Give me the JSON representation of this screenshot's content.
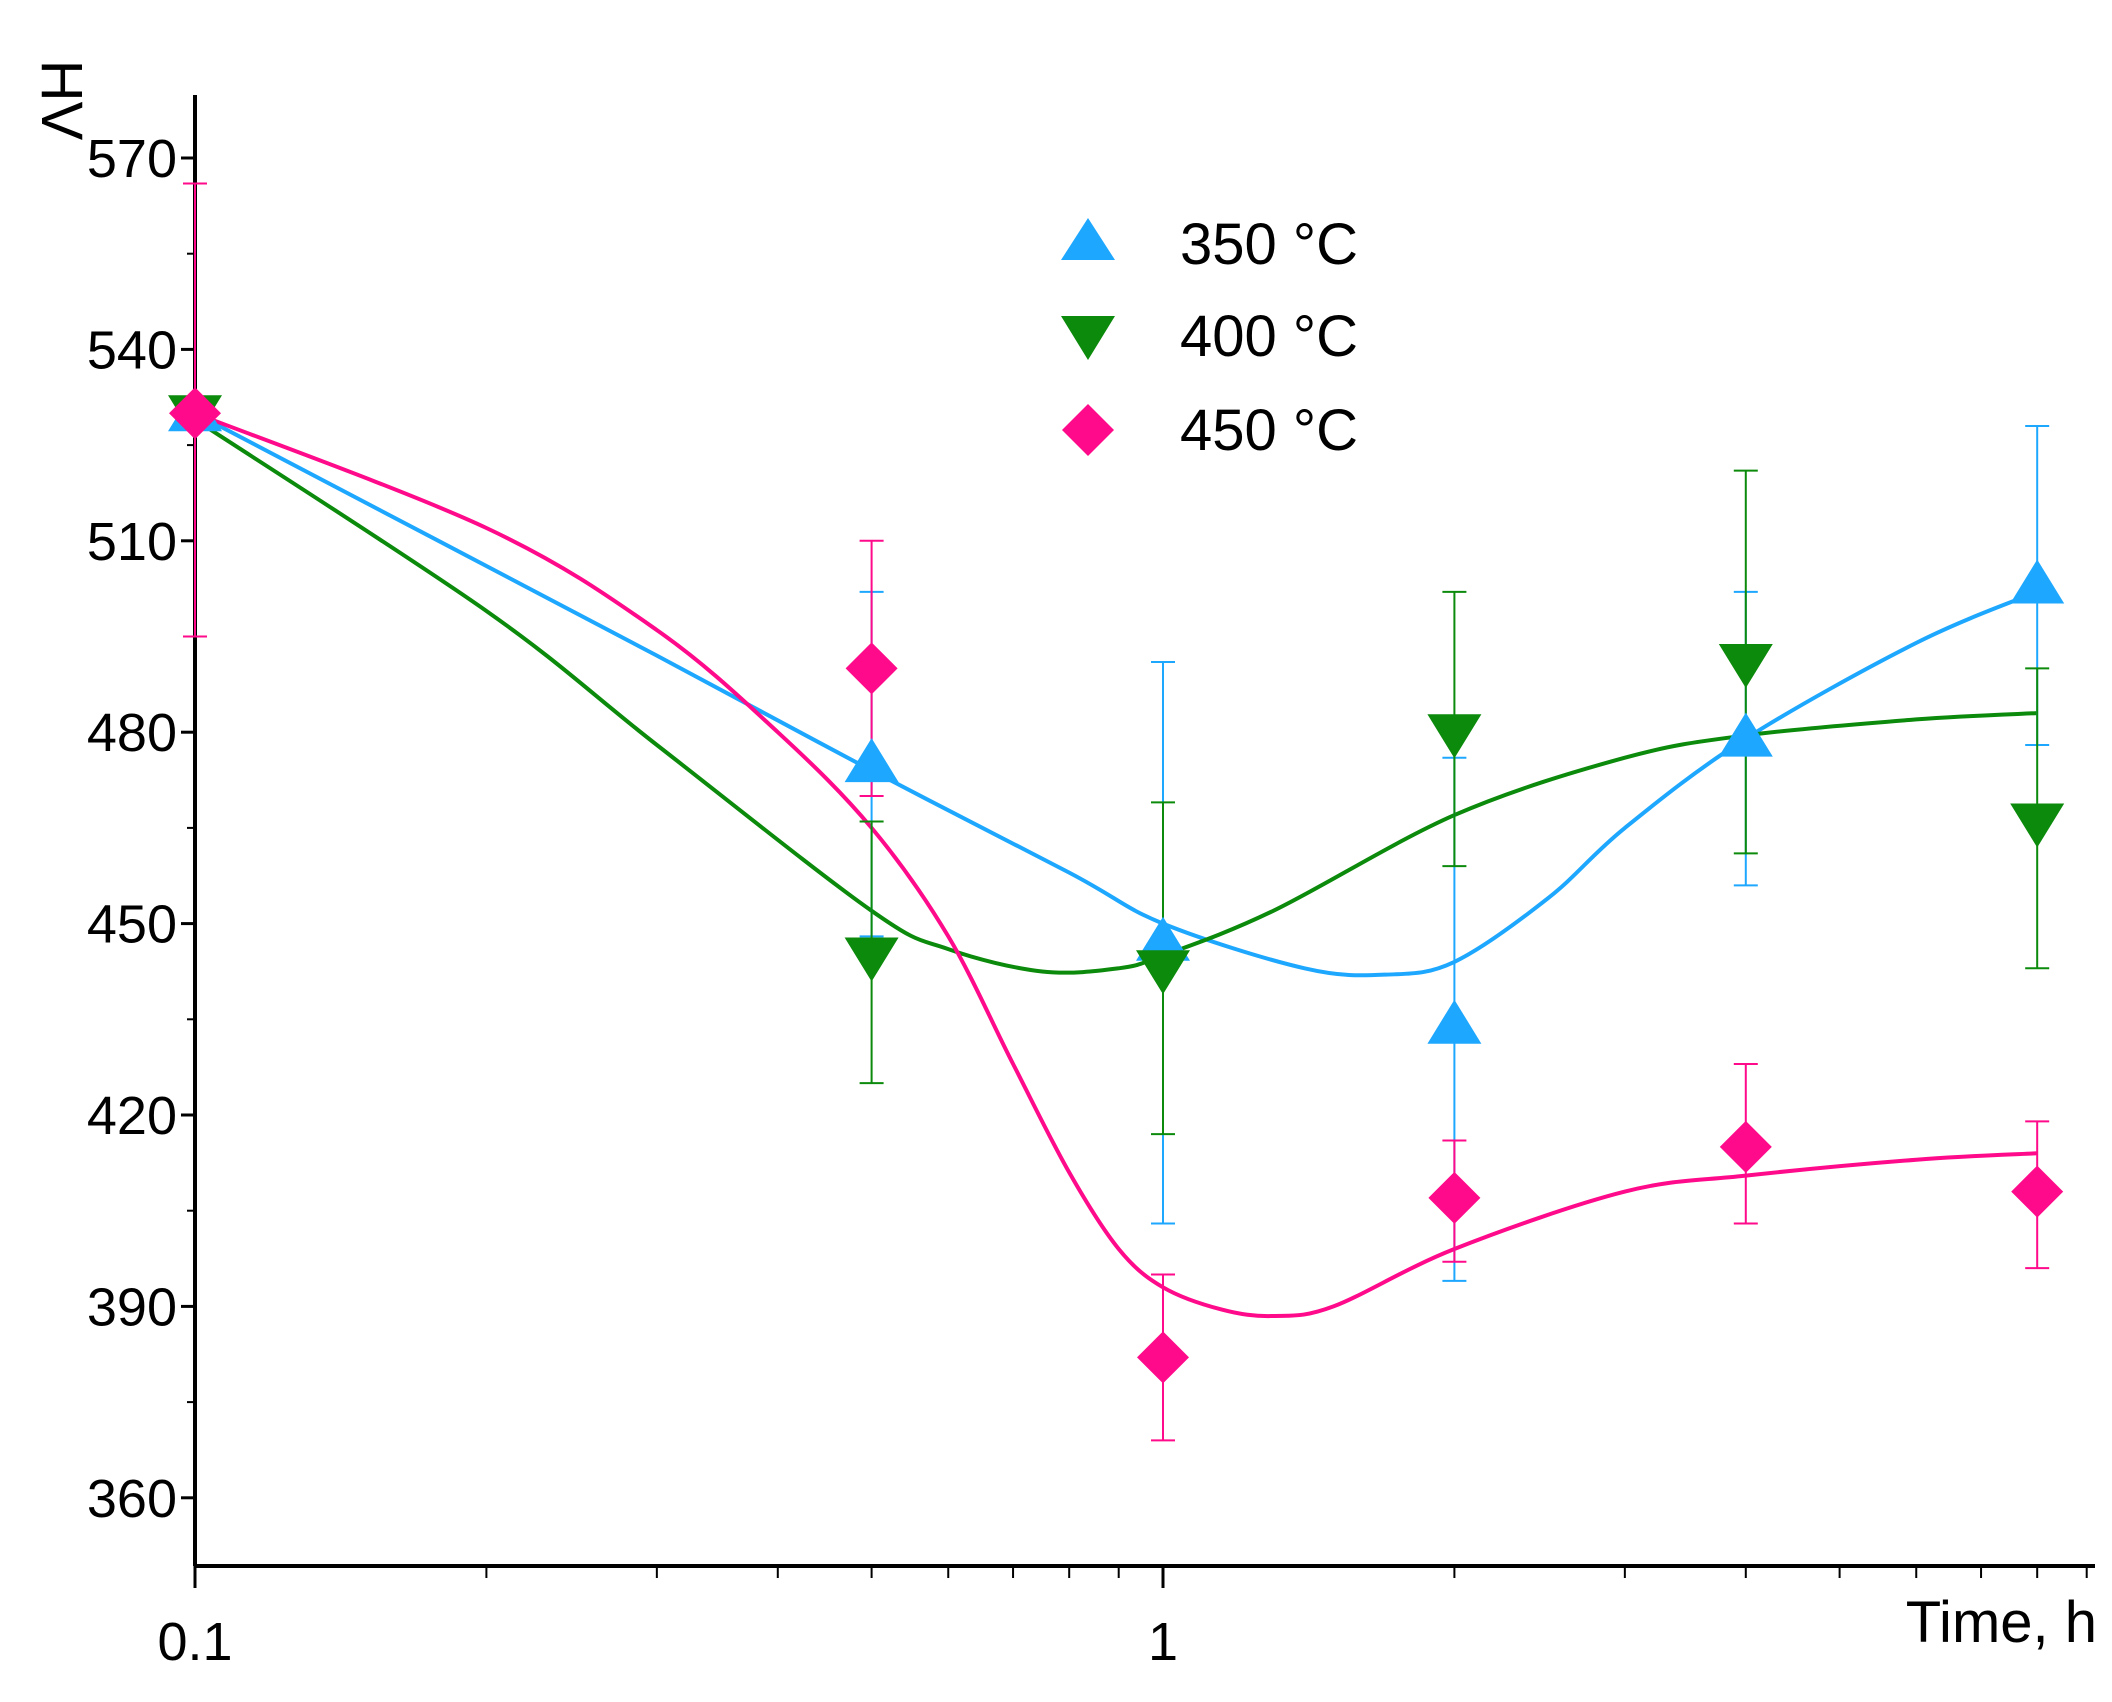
{
  "chart_data": {
    "type": "scatter",
    "title": "",
    "xlabel": "Time, h",
    "ylabel": "HV",
    "xscale": "log",
    "xlim": [
      0.1,
      9.3
    ],
    "ylim": [
      350,
      580
    ],
    "legend_position": "top-center",
    "grid": false,
    "x_tick_labels": [
      {
        "value": 0.1,
        "label": "0.1"
      },
      {
        "value": 1,
        "label": "1"
      }
    ],
    "y_ticks": [
      360,
      390,
      420,
      450,
      480,
      510,
      540,
      570
    ],
    "y_tick_labels": [
      "360",
      "390",
      "420",
      "450",
      "480",
      "510",
      "540",
      "570"
    ],
    "series": [
      {
        "name": "350 °C",
        "marker": "triangle-up",
        "color": "#1ea7ff",
        "points": [
          {
            "x": 0.1,
            "y": 530,
            "err_low": 530,
            "err_high": 530
          },
          {
            "x": 0.5,
            "y": 475,
            "err_low": 448,
            "err_high": 502
          },
          {
            "x": 1,
            "y": 447,
            "err_low": 403,
            "err_high": 491
          },
          {
            "x": 2,
            "y": 434,
            "err_low": 394,
            "err_high": 476
          },
          {
            "x": 4,
            "y": 479,
            "err_low": 456,
            "err_high": 502
          },
          {
            "x": 8,
            "y": 503,
            "err_low": 478,
            "err_high": 528
          }
        ],
        "fit": [
          [
            0.1,
            530
          ],
          [
            0.3,
            492
          ],
          [
            0.5,
            474
          ],
          [
            0.8,
            458
          ],
          [
            1,
            450
          ],
          [
            1.4,
            443
          ],
          [
            1.7,
            442
          ],
          [
            2,
            444
          ],
          [
            2.5,
            454
          ],
          [
            3,
            465
          ],
          [
            4,
            479
          ],
          [
            6,
            494
          ],
          [
            8,
            502
          ]
        ]
      },
      {
        "name": "400 °C",
        "marker": "triangle-down",
        "color": "#0b8a0b",
        "points": [
          {
            "x": 0.1,
            "y": 530,
            "err_low": 530,
            "err_high": 530
          },
          {
            "x": 0.5,
            "y": 445,
            "err_low": 425,
            "err_high": 466
          },
          {
            "x": 1,
            "y": 443,
            "err_low": 417,
            "err_high": 469
          },
          {
            "x": 2,
            "y": 480,
            "err_low": 459,
            "err_high": 502
          },
          {
            "x": 4,
            "y": 491,
            "err_low": 461,
            "err_high": 521
          },
          {
            "x": 8,
            "y": 466,
            "err_low": 443,
            "err_high": 490
          }
        ],
        "fit": [
          [
            0.1,
            529
          ],
          [
            0.2,
            499
          ],
          [
            0.3,
            478
          ],
          [
            0.5,
            452
          ],
          [
            0.6,
            446
          ],
          [
            0.75,
            442.5
          ],
          [
            0.9,
            443
          ],
          [
            1,
            445
          ],
          [
            1.3,
            452
          ],
          [
            2,
            467
          ],
          [
            3,
            476
          ],
          [
            4,
            479.5
          ],
          [
            6,
            482
          ],
          [
            8,
            483
          ]
        ]
      },
      {
        "name": "450 °C",
        "marker": "diamond",
        "color": "#ff0a8a",
        "points": [
          {
            "x": 0.1,
            "y": 530,
            "err_low": 495,
            "err_high": 566
          },
          {
            "x": 0.5,
            "y": 490,
            "err_low": 470,
            "err_high": 510
          },
          {
            "x": 1,
            "y": 382,
            "err_low": 369,
            "err_high": 395
          },
          {
            "x": 2,
            "y": 407,
            "err_low": 397,
            "err_high": 416
          },
          {
            "x": 4,
            "y": 415,
            "err_low": 403,
            "err_high": 428
          },
          {
            "x": 8,
            "y": 408,
            "err_low": 396,
            "err_high": 419
          }
        ],
        "fit": [
          [
            0.1,
            530
          ],
          [
            0.2,
            512
          ],
          [
            0.3,
            496
          ],
          [
            0.4,
            480
          ],
          [
            0.5,
            465
          ],
          [
            0.6,
            448
          ],
          [
            0.7,
            428
          ],
          [
            0.8,
            411
          ],
          [
            0.9,
            399
          ],
          [
            1,
            393
          ],
          [
            1.15,
            389.5
          ],
          [
            1.3,
            388.5
          ],
          [
            1.5,
            390
          ],
          [
            2,
            399
          ],
          [
            3,
            408
          ],
          [
            4,
            410.5
          ],
          [
            6,
            413
          ],
          [
            8,
            414
          ]
        ]
      }
    ]
  }
}
